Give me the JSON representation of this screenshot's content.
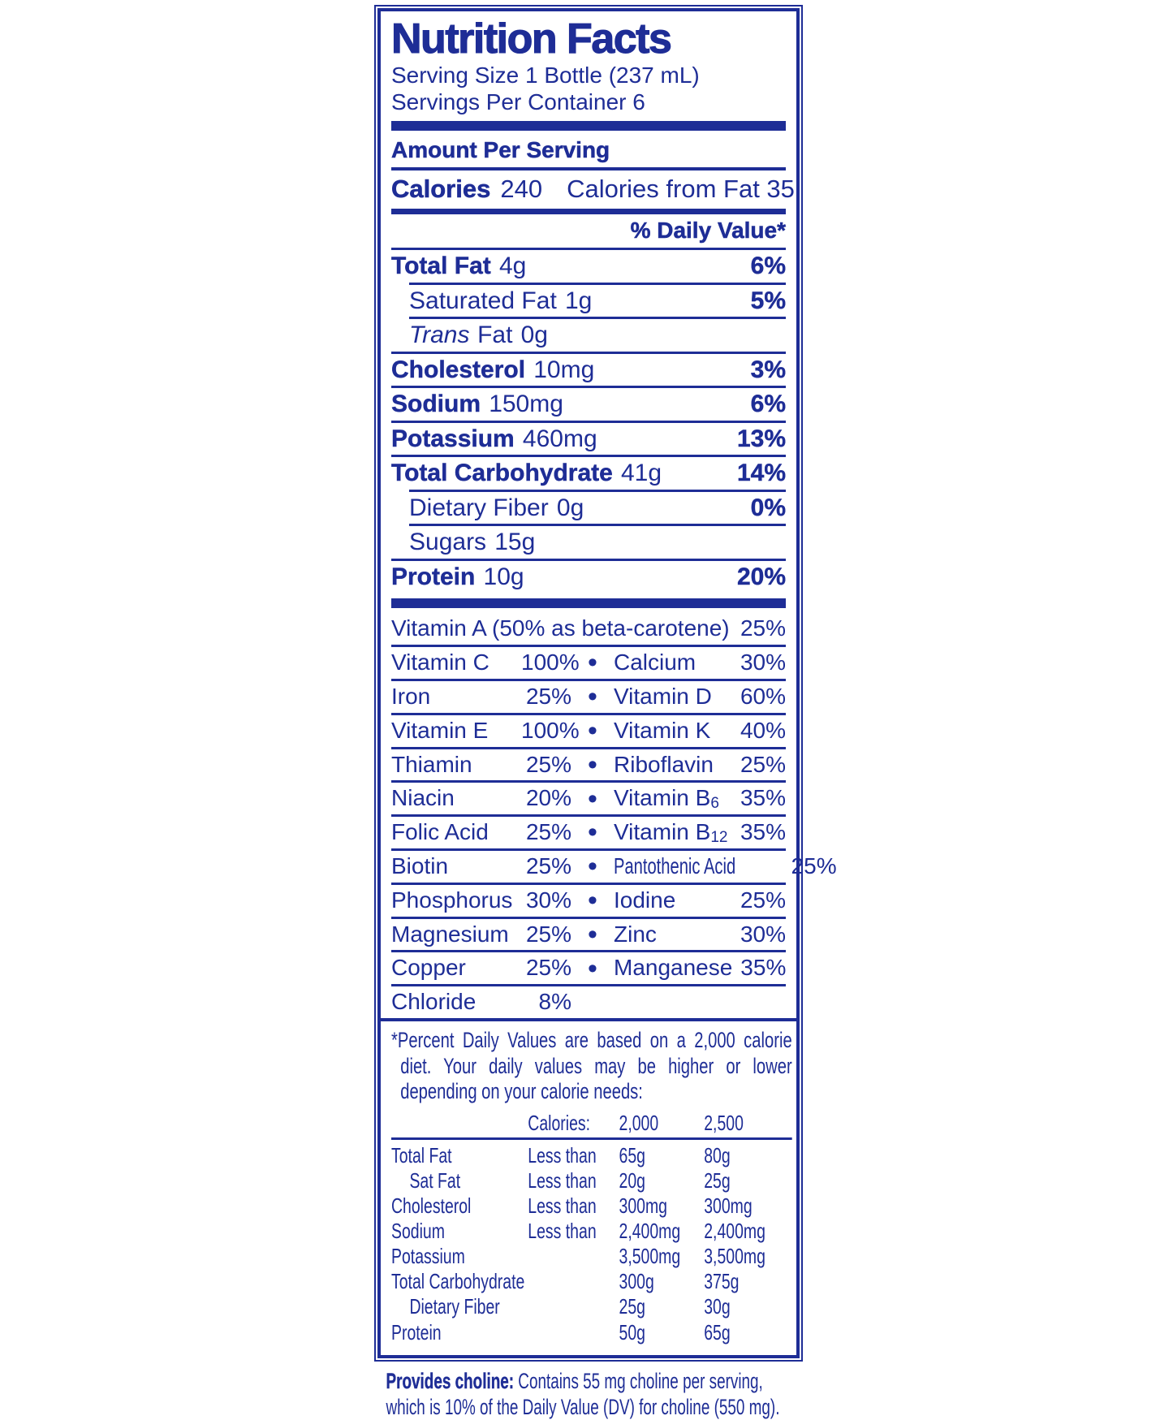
{
  "colors": {
    "ink": "#1E2D96",
    "background": "#FFFFFF"
  },
  "icons": {
    "bullet": "•"
  },
  "label": {
    "title": "Nutrition Facts",
    "serving_size": "Serving Size 1 Bottle (237 mL)",
    "servings_per_container": "Servings Per Container 6",
    "amount_per_serving": "Amount Per Serving",
    "calories_label": "Calories",
    "calories_value": "240",
    "calories_from_fat": "Calories from Fat 35",
    "daily_value_header": "% Daily Value*",
    "nutrients": [
      {
        "name": "Total Fat",
        "amount": "4g",
        "dv": "6%"
      },
      {
        "name": "Saturated Fat",
        "amount": "1g",
        "dv": "5%"
      },
      {
        "name_italic": "Trans",
        "name": "Fat",
        "amount": "0g",
        "dv": ""
      },
      {
        "name": "Cholesterol",
        "amount": "10mg",
        "dv": "3%"
      },
      {
        "name": "Sodium",
        "amount": "150mg",
        "dv": "6%"
      },
      {
        "name": "Potassium",
        "amount": "460mg",
        "dv": "13%"
      },
      {
        "name": "Total Carbohydrate",
        "amount": "41g",
        "dv": "14%"
      },
      {
        "name": "Dietary Fiber",
        "amount": "0g",
        "dv": "0%"
      },
      {
        "name": "Sugars",
        "amount": "15g",
        "dv": ""
      },
      {
        "name": "Protein",
        "amount": "10g",
        "dv": "20%"
      }
    ],
    "vitamin_a_row": {
      "name": "Vitamin A (50% as beta-carotene)",
      "dv": "25%"
    },
    "vitamins": [
      {
        "left": {
          "name": "Vitamin C",
          "dv": "100%"
        },
        "right": {
          "name": "Calcium",
          "dv": "30%"
        }
      },
      {
        "left": {
          "name": "Iron",
          "dv": "25%"
        },
        "right": {
          "name": "Vitamin D",
          "dv": "60%"
        }
      },
      {
        "left": {
          "name": "Vitamin E",
          "dv": "100%"
        },
        "right": {
          "name": "Vitamin K",
          "dv": "40%"
        }
      },
      {
        "left": {
          "name": "Thiamin",
          "dv": "25%"
        },
        "right": {
          "name": "Riboflavin",
          "dv": "25%"
        }
      },
      {
        "left": {
          "name": "Niacin",
          "dv": "20%"
        },
        "right": {
          "name": "Vitamin B",
          "sub": "6",
          "dv": "35%"
        }
      },
      {
        "left": {
          "name": "Folic Acid",
          "dv": "25%"
        },
        "right": {
          "name": "Vitamin B",
          "sub": "12",
          "dv": "35%"
        }
      },
      {
        "left": {
          "name": "Biotin",
          "dv": "25%"
        },
        "right": {
          "name": "Pantothenic Acid",
          "dv": "25%"
        }
      },
      {
        "left": {
          "name": "Phosphorus",
          "dv": "30%"
        },
        "right": {
          "name": "Iodine",
          "dv": "25%"
        }
      },
      {
        "left": {
          "name": "Magnesium",
          "dv": "25%"
        },
        "right": {
          "name": "Zinc",
          "dv": "30%"
        }
      },
      {
        "left": {
          "name": "Copper",
          "dv": "25%"
        },
        "right": {
          "name": "Manganese",
          "dv": "35%"
        }
      }
    ],
    "chloride_row": {
      "name": "Chloride",
      "dv": "8%"
    },
    "footnote": {
      "text": "*Percent Daily Values are based on a 2,000 calorie diet. Your daily values may be higher or lower depending on your calorie needs:",
      "table": {
        "header": {
          "calories": "Calories:",
          "v2000": "2,000",
          "v2500": "2,500"
        },
        "rows": [
          {
            "name": "Total Fat",
            "cond": "Less than",
            "v2000": "65g",
            "v2500": "80g"
          },
          {
            "name": "Sat Fat",
            "cond": "Less than",
            "v2000": "20g",
            "v2500": "25g"
          },
          {
            "name": "Cholesterol",
            "cond": "Less than",
            "v2000": "300mg",
            "v2500": "300mg"
          },
          {
            "name": "Sodium",
            "cond": "Less than",
            "v2000": "2,400mg",
            "v2500": "2,400mg"
          },
          {
            "name": "Potassium",
            "cond": "",
            "v2000": "3,500mg",
            "v2500": "3,500mg"
          },
          {
            "name": "Total Carbohydrate",
            "cond": "",
            "v2000": "300g",
            "v2500": "375g"
          },
          {
            "name": "Dietary Fiber",
            "cond": "",
            "v2000": "25g",
            "v2500": "30g"
          },
          {
            "name": "Protein",
            "cond": "",
            "v2000": "50g",
            "v2500": "65g"
          }
        ]
      }
    },
    "choline_note": {
      "bold": "Provides choline:",
      "text": " Contains 55 mg choline per serving, which is 10% of the Daily Value (DV) for choline (550 mg)."
    }
  }
}
